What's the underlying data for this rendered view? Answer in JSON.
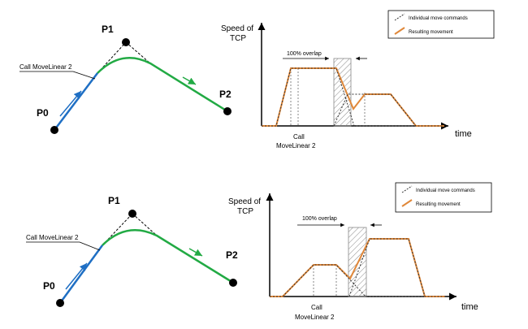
{
  "diagram_top": {
    "points": {
      "p0": "P0",
      "p1": "P1",
      "p2": "P2"
    },
    "call_label": "Call MoveLinear 2"
  },
  "chart_top": {
    "ylabel_line1": "Speed of",
    "ylabel_line2": "TCP",
    "xlabel": "time",
    "overlap_label": "100% overlap",
    "call_line1": "Call",
    "call_line2": "MoveLinear 2",
    "legend": {
      "individual": "Individual move commands",
      "resulting": "Resulting movement"
    }
  },
  "diagram_bottom": {
    "points": {
      "p0": "P0",
      "p1": "P1",
      "p2": "P2"
    },
    "call_label": "Call MoveLinear 2"
  },
  "chart_bottom": {
    "ylabel_line1": "Speed of",
    "ylabel_line2": "TCP",
    "xlabel": "time",
    "overlap_label": "100% overlap",
    "call_line1": "Call",
    "call_line2": "MoveLinear 2",
    "legend": {
      "individual": "Individual move commands",
      "resulting": "Resulting movement"
    }
  },
  "colors": {
    "linear_segment": "#1f6fc4",
    "blended_segment": "#22aa44",
    "resulting_movement": "#e0883a",
    "individual_commands": "#333333"
  }
}
